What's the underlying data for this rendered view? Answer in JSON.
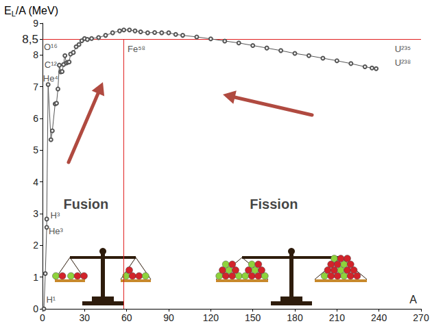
{
  "chart_data": {
    "type": "line",
    "y_label": "EL/A (MeV)",
    "x_label": "A",
    "x": [
      1,
      2,
      3,
      3,
      4,
      6,
      7,
      9,
      10,
      11,
      12,
      13,
      14,
      15,
      16,
      17,
      18,
      19,
      20,
      22,
      24,
      26,
      28,
      30,
      32,
      35,
      40,
      45,
      50,
      55,
      58,
      62,
      66,
      70,
      75,
      80,
      85,
      90,
      95,
      100,
      110,
      120,
      130,
      140,
      150,
      160,
      170,
      180,
      190,
      200,
      210,
      220,
      230,
      235,
      238
    ],
    "values": [
      0,
      1.11,
      2.57,
      2.83,
      7.07,
      5.33,
      5.61,
      6.46,
      6.48,
      6.93,
      7.68,
      7.47,
      7.48,
      7.7,
      7.98,
      7.75,
      7.77,
      7.78,
      8.03,
      8.08,
      8.26,
      8.33,
      8.45,
      8.52,
      8.49,
      8.52,
      8.55,
      8.62,
      8.7,
      8.76,
      8.79,
      8.79,
      8.76,
      8.73,
      8.7,
      8.71,
      8.7,
      8.7,
      8.65,
      8.62,
      8.57,
      8.51,
      8.44,
      8.38,
      8.3,
      8.22,
      8.14,
      8.05,
      7.98,
      7.9,
      7.82,
      7.73,
      7.63,
      7.59,
      7.57
    ],
    "color": "#555555",
    "marker": "circle",
    "xlim": [
      0,
      270
    ],
    "xticks": [
      0,
      30,
      60,
      90,
      120,
      150,
      180,
      210,
      240,
      270
    ],
    "ylim": [
      0,
      9
    ],
    "yticks": [
      0,
      1,
      2,
      3,
      4,
      5,
      6,
      7,
      8,
      {
        "value": 8.5,
        "label": "8,5"
      },
      9
    ],
    "grid": false,
    "reference_lines": [
      {
        "axis": "y",
        "value": 8.5,
        "color": "#e02020"
      },
      {
        "axis": "x",
        "value": 58,
        "color": "#e02020"
      }
    ],
    "point_labels": [
      {
        "text": "H¹",
        "x": 6,
        "y": 0.3
      },
      {
        "text": "H³",
        "x": 9,
        "y": 2.95
      },
      {
        "text": "He³",
        "x": 9.5,
        "y": 2.45
      },
      {
        "text": "He⁴",
        "x": 5.8,
        "y": 7.27
      },
      {
        "text": "C¹²",
        "x": 5.8,
        "y": 7.7
      },
      {
        "text": "O¹⁶",
        "x": 5.8,
        "y": 8.25
      },
      {
        "text": "Fe⁵⁸",
        "x": 67,
        "y": 8.2
      },
      {
        "text": "U²³⁵",
        "x": 257,
        "y": 8.2
      },
      {
        "text": "U²³⁸",
        "x": 257,
        "y": 7.75
      }
    ],
    "region_labels": [
      {
        "text": "Fusion",
        "x": 31,
        "y": 3.3
      },
      {
        "text": "Fission",
        "x": 165,
        "y": 3.3
      }
    ]
  }
}
